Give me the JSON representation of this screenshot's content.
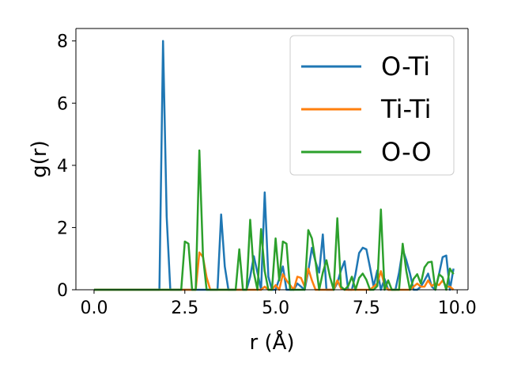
{
  "chart_data": {
    "type": "line",
    "xlabel": "r (Å)",
    "ylabel": "g(r)",
    "xlim": [
      -0.5,
      10.3
    ],
    "ylim": [
      0,
      8.4
    ],
    "xticks": [
      "0.0",
      "2.5",
      "5.0",
      "7.5",
      "10.0"
    ],
    "xtick_values": [
      0,
      2.5,
      5,
      7.5,
      10
    ],
    "yticks": [
      "0",
      "2",
      "4",
      "6",
      "8"
    ],
    "ytick_values": [
      0,
      2,
      4,
      6,
      8
    ],
    "grid": false,
    "legend_position": "top-right",
    "series": [
      {
        "name": "O-Ti",
        "color": "#1f77b4",
        "x": [
          0.0,
          1.8,
          1.9,
          2.0,
          2.1,
          2.2,
          2.3,
          3.4,
          3.5,
          3.6,
          3.7,
          4.2,
          4.3,
          4.4,
          4.5,
          4.6,
          4.7,
          4.8,
          4.9,
          5.0,
          5.1,
          5.2,
          5.3,
          5.5,
          5.6,
          5.7,
          5.8,
          5.9,
          6.0,
          6.1,
          6.2,
          6.3,
          6.4,
          6.5,
          6.6,
          6.7,
          6.8,
          6.9,
          7.0,
          7.1,
          7.2,
          7.3,
          7.4,
          7.5,
          7.6,
          7.7,
          7.8,
          7.9,
          8.0,
          8.1,
          8.2,
          8.3,
          8.4,
          8.5,
          8.6,
          8.7,
          8.8,
          8.9,
          9.0,
          9.1,
          9.2,
          9.3,
          9.4,
          9.5,
          9.6,
          9.7,
          9.8,
          9.9
        ],
        "values": [
          0,
          0,
          8.0,
          2.35,
          0,
          0,
          0,
          0,
          2.42,
          0.75,
          0,
          0,
          0.42,
          1.08,
          0.55,
          0,
          3.13,
          0.42,
          0,
          0,
          0.35,
          0.75,
          0,
          0,
          0.2,
          0.1,
          0,
          0.6,
          1.35,
          0.9,
          0.55,
          1.78,
          0,
          0,
          0,
          0.22,
          0.62,
          0.92,
          0,
          0,
          0.5,
          1.18,
          1.35,
          1.3,
          0.72,
          0.1,
          0.62,
          0,
          0.35,
          0,
          0,
          0,
          0.55,
          1.3,
          0.95,
          0.52,
          0,
          0,
          0.1,
          0.3,
          0.52,
          0.1,
          0,
          0.5,
          1.05,
          1.1,
          0,
          0.68
        ]
      },
      {
        "name": "Ti-Ti",
        "color": "#ff7f0e",
        "x": [
          0.0,
          2.8,
          2.9,
          3.0,
          3.1,
          3.2,
          4.6,
          4.7,
          4.8,
          4.9,
          5.0,
          5.1,
          5.2,
          5.3,
          5.5,
          5.6,
          5.7,
          5.8,
          5.9,
          6.0,
          6.1,
          6.6,
          6.7,
          6.8,
          6.9,
          7.6,
          7.7,
          7.8,
          7.9,
          8.0,
          8.1,
          8.7,
          8.8,
          8.9,
          9.0,
          9.1,
          9.2,
          9.3,
          9.4,
          9.5,
          9.6,
          9.7,
          9.8,
          9.9
        ],
        "values": [
          0,
          0,
          1.2,
          1.05,
          0.4,
          0,
          0,
          0.1,
          0,
          0,
          0.15,
          0,
          0.5,
          0.3,
          0,
          0.42,
          0.38,
          0.1,
          0.68,
          0.3,
          0,
          0,
          0.3,
          0.05,
          0,
          0,
          0.1,
          0.2,
          0.6,
          0.15,
          0,
          0,
          0.1,
          0.2,
          0.1,
          0.1,
          0.3,
          0.12,
          0.2,
          0.15,
          0.3,
          0.1,
          0.1,
          0
        ]
      },
      {
        "name": "O-O",
        "color": "#2ca02c",
        "x": [
          0.0,
          2.4,
          2.5,
          2.6,
          2.7,
          2.8,
          2.9,
          3.0,
          3.1,
          3.2,
          3.9,
          4.0,
          4.1,
          4.2,
          4.3,
          4.4,
          4.5,
          4.6,
          4.7,
          4.8,
          4.9,
          5.0,
          5.1,
          5.2,
          5.3,
          5.4,
          5.5,
          5.6,
          5.7,
          5.8,
          5.9,
          6.0,
          6.1,
          6.2,
          6.3,
          6.4,
          6.5,
          6.6,
          6.7,
          6.8,
          6.9,
          7.0,
          7.1,
          7.2,
          7.3,
          7.4,
          7.5,
          7.6,
          7.7,
          7.8,
          7.9,
          8.0,
          8.1,
          8.2,
          8.3,
          8.4,
          8.5,
          8.6,
          8.7,
          8.8,
          8.9,
          9.0,
          9.1,
          9.2,
          9.3,
          9.4,
          9.5,
          9.6,
          9.7,
          9.8,
          9.9
        ],
        "values": [
          0,
          0,
          1.55,
          1.48,
          0,
          0,
          4.48,
          1.08,
          0,
          0,
          0,
          1.3,
          0,
          0,
          2.25,
          0.55,
          0,
          1.95,
          0.6,
          0,
          0,
          1.65,
          0.3,
          1.55,
          1.48,
          0,
          0,
          0,
          0,
          0,
          1.92,
          1.65,
          0.9,
          0,
          0.55,
          0.95,
          0.4,
          0,
          2.3,
          0.1,
          0,
          0.12,
          0.42,
          0,
          0.38,
          0.52,
          0.32,
          0,
          0,
          0.12,
          2.58,
          0,
          0.3,
          0,
          0,
          0,
          1.48,
          0.6,
          0,
          0.35,
          0.5,
          0.2,
          0.72,
          0.88,
          0.9,
          0,
          0.5,
          0.4,
          0,
          0.68,
          0.5
        ]
      }
    ]
  }
}
